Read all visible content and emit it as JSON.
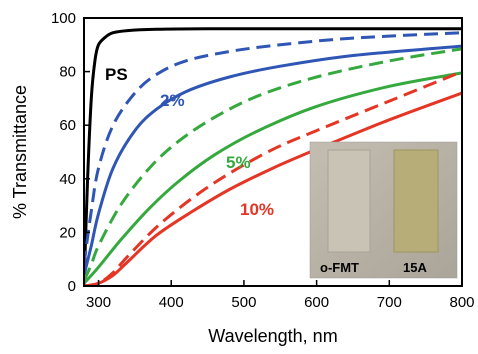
{
  "chart_data": {
    "type": "line",
    "xlabel": "Wavelength, nm",
    "ylabel": "% Transmittance",
    "xlim": [
      280,
      800
    ],
    "ylim": [
      0,
      100
    ],
    "xticks": [
      "300",
      "400",
      "500",
      "600",
      "700",
      "800"
    ],
    "yticks": [
      "0",
      "20",
      "40",
      "60",
      "80",
      "100"
    ],
    "grid": false,
    "legend": "none",
    "series": [
      {
        "name": "PS",
        "color": "#000000",
        "style": "solid",
        "x": [
          280,
          285,
          290,
          295,
          300,
          310,
          320,
          340,
          380,
          450,
          600,
          800
        ],
        "y": [
          0,
          40,
          70,
          84,
          90,
          93,
          94.5,
          95.3,
          95.8,
          96,
          96,
          96
        ]
      },
      {
        "name": "2%",
        "color": "#2f56b5",
        "style": "dashed",
        "x": [
          280,
          290,
          300,
          320,
          350,
          380,
          420,
          480,
          550,
          650,
          800
        ],
        "y": [
          8,
          28,
          44,
          60,
          72,
          79,
          84,
          87.5,
          90,
          92.5,
          94.5
        ]
      },
      {
        "name": "2%",
        "color": "#2f56b5",
        "style": "solid",
        "x": [
          280,
          290,
          300,
          320,
          350,
          380,
          420,
          480,
          550,
          650,
          800
        ],
        "y": [
          4,
          15,
          27,
          44,
          58,
          66,
          72.5,
          78,
          82,
          86,
          89.5
        ]
      },
      {
        "name": "5%",
        "color": "#35a93e",
        "style": "dashed",
        "x": [
          280,
          290,
          300,
          330,
          370,
          410,
          460,
          520,
          600,
          700,
          800
        ],
        "y": [
          2,
          8,
          15,
          30,
          44,
          54,
          63,
          71,
          78,
          84,
          88.5
        ]
      },
      {
        "name": "5%",
        "color": "#35a93e",
        "style": "solid",
        "x": [
          280,
          300,
          330,
          370,
          410,
          460,
          520,
          600,
          700,
          800
        ],
        "y": [
          1,
          7,
          17,
          29,
          39,
          49,
          58,
          67,
          74.5,
          79.5
        ]
      },
      {
        "name": "10%",
        "color": "#e53524",
        "style": "dashed",
        "x": [
          280,
          300,
          320,
          340,
          380,
          430,
          480,
          540,
          600,
          700,
          800
        ],
        "y": [
          0,
          1,
          5,
          11,
          22,
          33,
          42,
          51,
          58,
          69,
          80
        ]
      },
      {
        "name": "10%",
        "color": "#e53524",
        "style": "solid",
        "x": [
          280,
          300,
          320,
          340,
          380,
          430,
          480,
          540,
          600,
          700,
          800
        ],
        "y": [
          0,
          1,
          4,
          9,
          19,
          28,
          36,
          44,
          51,
          62,
          72
        ]
      }
    ],
    "annotations": [
      {
        "text": "PS",
        "color": "#000000"
      },
      {
        "text": "2%",
        "color": "#2f56b5"
      },
      {
        "text": "5%",
        "color": "#35a93e"
      },
      {
        "text": "10%",
        "color": "#e53524"
      }
    ],
    "inset_photo": {
      "labels": [
        "o-FMT",
        "15A"
      ],
      "background": "#b9b3a6"
    }
  }
}
